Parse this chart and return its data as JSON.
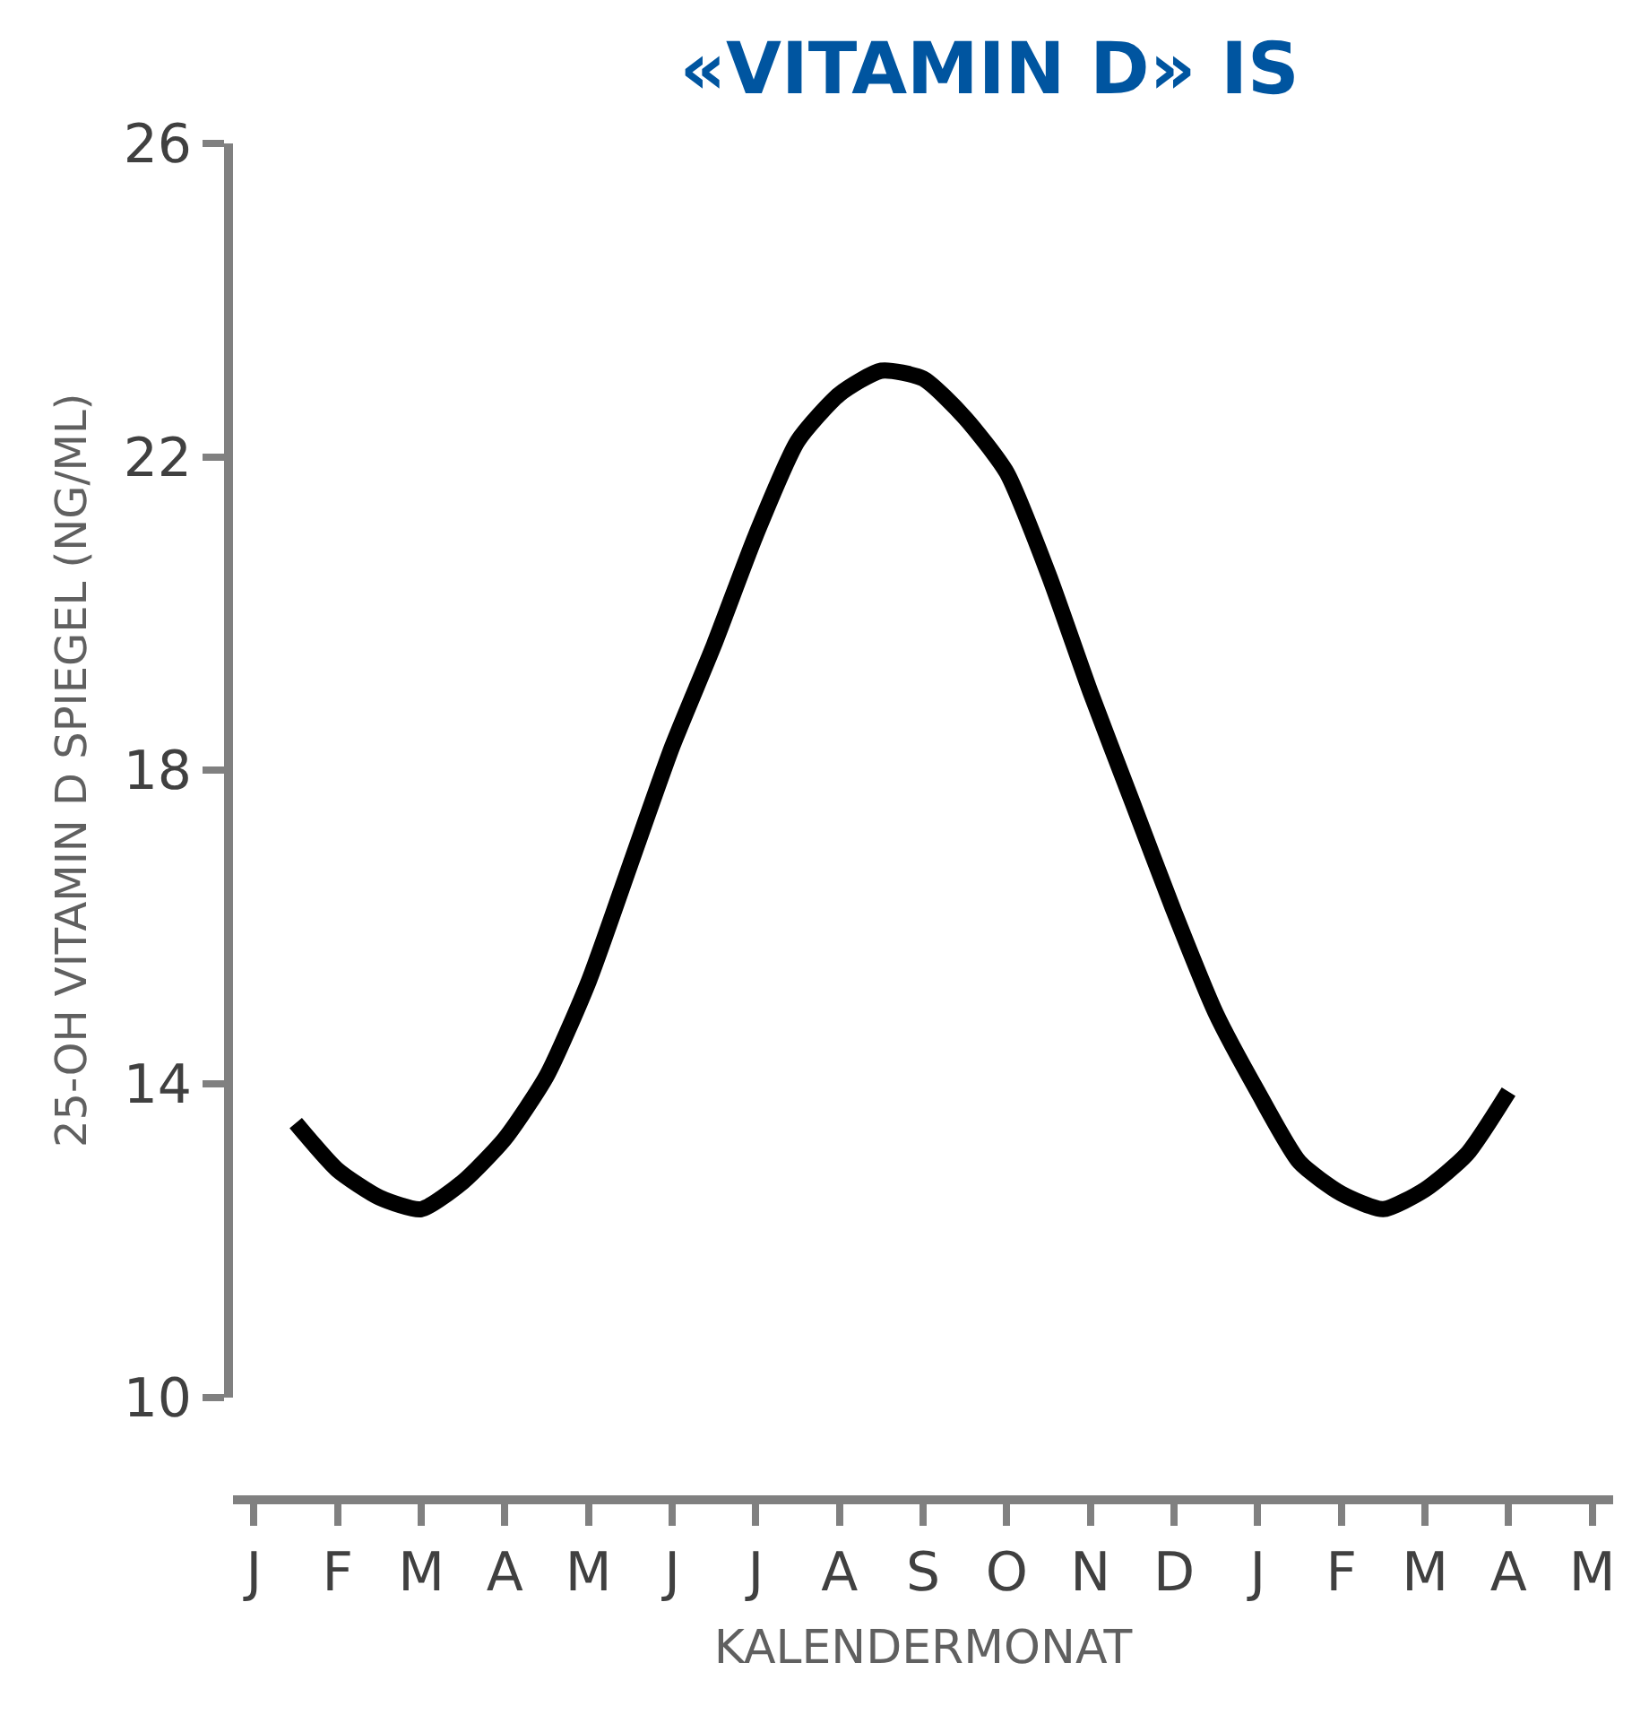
{
  "chart_data": {
    "type": "line",
    "title": "«VITAMIN D» IS",
    "xlabel": "KALENDERMONAT",
    "ylabel": "25-OH VITAMIN D SPIEGEL (NG/ML)",
    "categories": [
      "J",
      null,
      "F",
      null,
      "M",
      null,
      "A",
      null,
      "M",
      null,
      "J",
      null,
      "J",
      null,
      "A",
      null,
      "S",
      null,
      "O",
      null,
      "N",
      null,
      "D",
      null,
      "J",
      null,
      "F",
      null,
      "M",
      null,
      "A",
      null,
      "M"
    ],
    "series": [
      {
        "color": "#000000",
        "values": [
          null,
          13.5,
          12.9,
          12.55,
          12.4,
          12.75,
          13.3,
          14.1,
          15.3,
          16.8,
          18.3,
          19.6,
          21.0,
          22.2,
          22.8,
          23.1,
          23.0,
          22.5,
          21.8,
          20.5,
          19.0,
          17.6,
          16.2,
          14.9,
          13.9,
          13.0,
          12.6,
          12.4,
          12.65,
          13.1,
          13.9,
          null,
          null
        ]
      }
    ],
    "ylim": [
      10,
      26
    ],
    "yticks": [
      10,
      14,
      18,
      22,
      26
    ],
    "marker": "none",
    "line_style": "solid"
  }
}
